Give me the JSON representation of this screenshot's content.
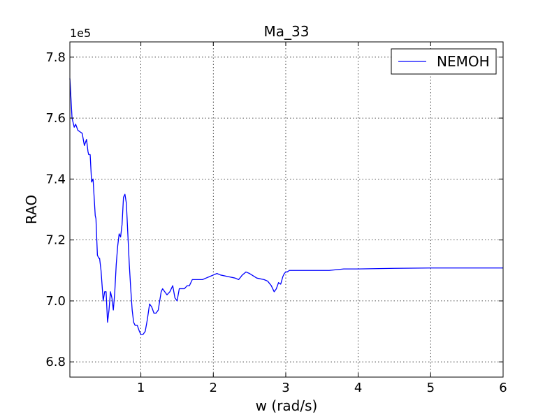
{
  "chart_data": {
    "type": "line",
    "title": "Ma_33",
    "xlabel": "w (rad/s)",
    "ylabel": "RAO",
    "y_offset_label": "1e5",
    "xlim": [
      0.02,
      6.0
    ],
    "ylim": [
      6.75,
      7.85
    ],
    "x_ticks": [
      1,
      2,
      3,
      4,
      5,
      6
    ],
    "x_tick_labels": [
      "1",
      "2",
      "3",
      "4",
      "5",
      "6"
    ],
    "y_ticks": [
      6.8,
      7.0,
      7.2,
      7.4,
      7.6,
      7.8
    ],
    "y_tick_labels": [
      "6.8",
      "7.0",
      "7.2",
      "7.4",
      "7.6",
      "7.8"
    ],
    "grid": true,
    "legend_position": "top-right",
    "series_color": "#0000ff",
    "series": [
      {
        "name": "NEMOH",
        "x": [
          0.02,
          0.05,
          0.08,
          0.1,
          0.13,
          0.16,
          0.19,
          0.22,
          0.25,
          0.27,
          0.28,
          0.3,
          0.32,
          0.34,
          0.37,
          0.38,
          0.4,
          0.42,
          0.43,
          0.45,
          0.48,
          0.5,
          0.52,
          0.54,
          0.56,
          0.58,
          0.6,
          0.62,
          0.64,
          0.66,
          0.68,
          0.7,
          0.72,
          0.74,
          0.76,
          0.78,
          0.8,
          0.82,
          0.84,
          0.86,
          0.88,
          0.9,
          0.92,
          0.95,
          0.98,
          1.0,
          1.03,
          1.06,
          1.09,
          1.12,
          1.15,
          1.18,
          1.21,
          1.24,
          1.26,
          1.28,
          1.3,
          1.33,
          1.36,
          1.4,
          1.44,
          1.47,
          1.5,
          1.53,
          1.56,
          1.6,
          1.64,
          1.67,
          1.69,
          1.71,
          1.74,
          1.77,
          1.8,
          1.85,
          1.9,
          1.95,
          2.0,
          2.05,
          2.1,
          2.2,
          2.3,
          2.35,
          2.4,
          2.45,
          2.5,
          2.6,
          2.7,
          2.75,
          2.8,
          2.84,
          2.87,
          2.9,
          2.93,
          2.96,
          2.98,
          3.0,
          3.02,
          3.05,
          3.08,
          3.1,
          3.12,
          3.2,
          3.4,
          3.6,
          3.8,
          4.0,
          4.5,
          5.0,
          5.5,
          6.0
        ],
        "values": [
          7.73,
          7.6,
          7.57,
          7.58,
          7.56,
          7.555,
          7.55,
          7.51,
          7.53,
          7.49,
          7.48,
          7.48,
          7.39,
          7.4,
          7.28,
          7.27,
          7.15,
          7.14,
          7.14,
          7.1,
          7.0,
          7.03,
          7.03,
          6.93,
          6.97,
          7.03,
          7.01,
          6.97,
          7.03,
          7.12,
          7.18,
          7.22,
          7.21,
          7.25,
          7.34,
          7.35,
          7.32,
          7.22,
          7.12,
          7.04,
          6.97,
          6.93,
          6.92,
          6.92,
          6.9,
          6.89,
          6.89,
          6.9,
          6.94,
          6.99,
          6.98,
          6.96,
          6.96,
          6.97,
          7.0,
          7.03,
          7.04,
          7.03,
          7.02,
          7.03,
          7.05,
          7.01,
          7.0,
          7.04,
          7.04,
          7.04,
          7.05,
          7.05,
          7.06,
          7.07,
          7.07,
          7.07,
          7.07,
          7.07,
          7.075,
          7.08,
          7.085,
          7.09,
          7.085,
          7.08,
          7.075,
          7.07,
          7.085,
          7.095,
          7.09,
          7.075,
          7.07,
          7.065,
          7.05,
          7.03,
          7.04,
          7.06,
          7.055,
          7.08,
          7.09,
          7.095,
          7.095,
          7.1,
          7.1,
          7.1,
          7.1,
          7.1,
          7.1,
          7.1,
          7.105,
          7.105,
          7.107,
          7.108,
          7.108,
          7.108
        ]
      }
    ]
  }
}
